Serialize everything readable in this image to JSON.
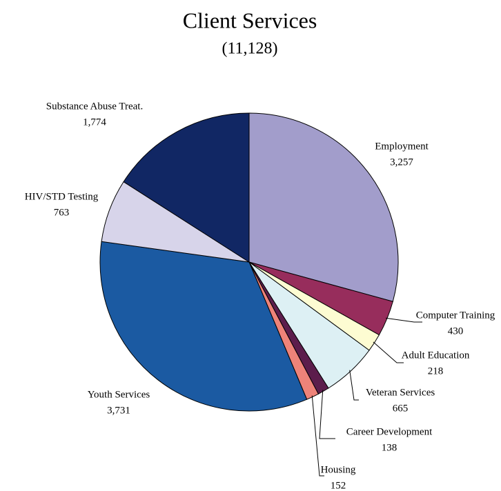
{
  "chart_data": {
    "type": "pie",
    "title": "Client Services",
    "subtitle": "(11,128)",
    "categories": [
      "Employment",
      "Computer Training",
      "Adult Education",
      "Veteran Services",
      "Career Development",
      "Housing",
      "Youth Services",
      "HIV/STD Testing",
      "Substance Abuse Treat."
    ],
    "values": [
      3257,
      430,
      218,
      665,
      138,
      152,
      3731,
      763,
      1774
    ],
    "value_labels": [
      "3,257",
      "430",
      "218",
      "665",
      "138",
      "152",
      "3,731",
      "763",
      "1,774"
    ],
    "colors": [
      "#a29dcb",
      "#972d5c",
      "#fdfcd2",
      "#ddf0f4",
      "#5c1d4c",
      "#ee8379",
      "#1b5aa2",
      "#d7d4ea",
      "#112764"
    ]
  }
}
